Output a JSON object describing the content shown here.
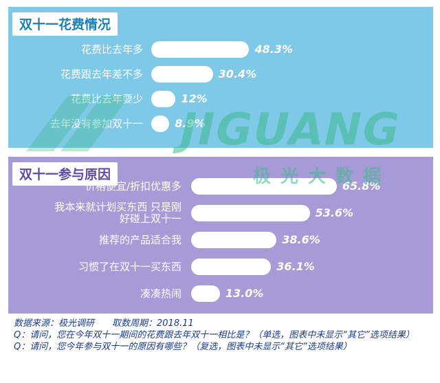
{
  "chart_data": [
    {
      "type": "bar",
      "orientation": "horizontal",
      "title": "双十一花费情况",
      "categories": [
        "花费比去年多",
        "花费跟去年差不多",
        "花费比去年要少",
        "去年没有参加双十一"
      ],
      "values": [
        48.3,
        30.4,
        12,
        8.9
      ],
      "value_labels": [
        "48.3%",
        "30.4%",
        "12%",
        "8.9%"
      ],
      "unit": "%"
    },
    {
      "type": "bar",
      "orientation": "horizontal",
      "title": "双十一参与原因",
      "categories": [
        "价格便宜/折扣优惠多",
        "我本来就计划买东西 只是刚好碰上双十一",
        "推荐的产品适合我",
        "习惯了在双十一买东西",
        "凑凑热闹"
      ],
      "category_lines": [
        [
          "价格便宜/折扣优惠多"
        ],
        [
          "我本来就计划买东西 只是刚",
          "好碰上双十一"
        ],
        [
          "推荐的产品适合我"
        ],
        [
          "习惯了在双十一买东西"
        ],
        [
          "凑凑热闹"
        ]
      ],
      "values": [
        65.8,
        53.6,
        38.6,
        36.1,
        13.0
      ],
      "value_labels": [
        "65.8%",
        "53.6%",
        "38.6%",
        "36.1%",
        "13.0%"
      ],
      "unit": "%"
    }
  ],
  "watermark": {
    "text": "JIGUANG",
    "subtext": "极光大数据",
    "color": "#3cb98c"
  },
  "footer": {
    "source": "数据来源：极光调研",
    "period": "取数周期：2018.11",
    "q1": "Q：请问，您在今年双十一期间的花费跟去年双十一相比是？（单选，图表中未显示“其它”选项结果）",
    "q2": "Q：请问，您今年参与双十一的原因有哪些？（复选，图表中未显示“其它”选项结果）"
  },
  "colors": {
    "panel_blue": "#7ec8e8",
    "panel_purple": "#a89ad6",
    "bar": "#ffffff",
    "footer_text": "#1a3a8a"
  }
}
